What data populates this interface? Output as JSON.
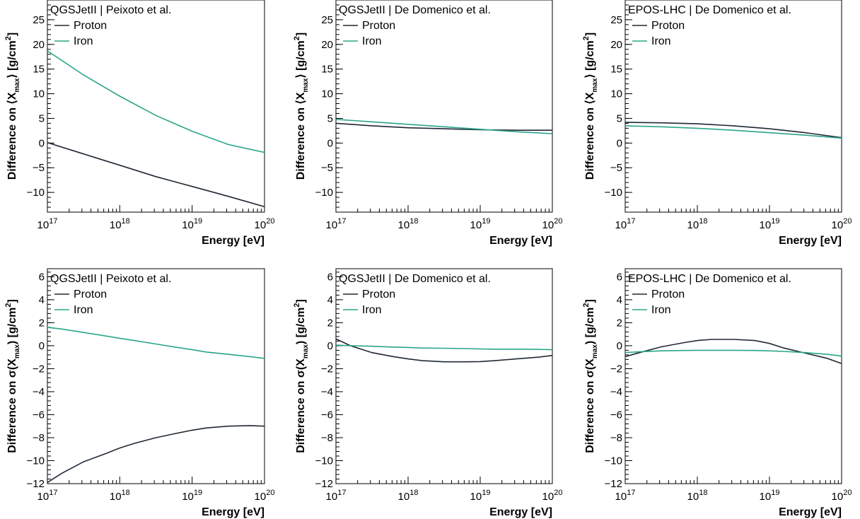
{
  "figure": {
    "colors": {
      "proton": "#202835",
      "iron": "#2aa58a"
    },
    "xlabel": "Energy [eV]",
    "x_ticks": [
      {
        "base": "10",
        "exp": "17",
        "value": 17
      },
      {
        "base": "10",
        "exp": "18",
        "value": 18
      },
      {
        "base": "10",
        "exp": "19",
        "value": 19
      },
      {
        "base": "10",
        "exp": "20",
        "value": 20
      }
    ]
  },
  "chart_data": [
    {
      "type": "line",
      "title": "QGSJetII | Peixoto et al.",
      "ylabel": {
        "pre": "Difference on ",
        "sym": "⟨X",
        "sub": "max",
        "post": "⟩ [g/cm",
        "sup": "2",
        "end": "]"
      },
      "x_scale": "log",
      "xlim": [
        1e+17,
        1e+20
      ],
      "ylim": [
        -14,
        29
      ],
      "y_ticks": [
        -10,
        -5,
        0,
        5,
        10,
        15,
        20,
        25
      ],
      "x": [
        1e+17,
        3.16e+17,
        1e+18,
        3.16e+18,
        1e+19,
        3.16e+19,
        1e+20
      ],
      "series": [
        {
          "name": "Proton",
          "values": [
            0.1,
            -2.2,
            -4.5,
            -6.8,
            -8.8,
            -10.8,
            -12.9
          ]
        },
        {
          "name": "Iron",
          "values": [
            18.7,
            13.8,
            9.5,
            5.6,
            2.4,
            -0.3,
            -1.9
          ]
        }
      ]
    },
    {
      "type": "line",
      "title": "QGSJetII | De Domenico et al.",
      "ylabel": {
        "pre": "Difference on ",
        "sym": "⟨X",
        "sub": "max",
        "post": "⟩ [g/cm",
        "sup": "2",
        "end": "]"
      },
      "x_scale": "log",
      "xlim": [
        1e+17,
        1e+20
      ],
      "ylim": [
        -14,
        29
      ],
      "y_ticks": [
        -10,
        -5,
        0,
        5,
        10,
        15,
        20,
        25
      ],
      "x": [
        1e+17,
        3.16e+17,
        1e+18,
        3.16e+18,
        1e+19,
        3.16e+19,
        1e+20
      ],
      "series": [
        {
          "name": "Proton",
          "values": [
            4.0,
            3.5,
            3.1,
            2.9,
            2.7,
            2.6,
            2.6
          ]
        },
        {
          "name": "Iron",
          "values": [
            4.8,
            4.3,
            3.8,
            3.3,
            2.8,
            2.3,
            1.9
          ]
        }
      ]
    },
    {
      "type": "line",
      "title": "EPOS-LHC | De Domenico et al.",
      "ylabel": {
        "pre": "Difference on ",
        "sym": "⟨X",
        "sub": "max",
        "post": "⟩ [g/cm",
        "sup": "2",
        "end": "]"
      },
      "x_scale": "log",
      "xlim": [
        1e+17,
        1e+20
      ],
      "ylim": [
        -14,
        29
      ],
      "y_ticks": [
        -10,
        -5,
        0,
        5,
        10,
        15,
        20,
        25
      ],
      "x": [
        1e+17,
        3.16e+17,
        1e+18,
        3.16e+18,
        1e+19,
        3.16e+19,
        1e+20
      ],
      "series": [
        {
          "name": "Proton",
          "values": [
            4.2,
            4.1,
            3.9,
            3.5,
            2.9,
            2.1,
            1.1
          ]
        },
        {
          "name": "Iron",
          "values": [
            3.5,
            3.3,
            3.0,
            2.6,
            2.1,
            1.6,
            1.0
          ]
        }
      ]
    },
    {
      "type": "line",
      "title": "QGSJetII | Peixoto et al.",
      "ylabel": {
        "pre": "Difference on ",
        "sym": "σ(X",
        "sub": "max",
        "post": ") [g/cm",
        "sup": "2",
        "end": "]"
      },
      "x_scale": "log",
      "xlim": [
        1e+17,
        1e+20
      ],
      "ylim": [
        -12,
        6.7
      ],
      "y_ticks": [
        -12,
        -10,
        -8,
        -6,
        -4,
        -2,
        0,
        2,
        4,
        6
      ],
      "x": [
        1e+17,
        1.58e+17,
        3.16e+17,
        6.3e+17,
        1e+18,
        1.58e+18,
        3.16e+18,
        6.3e+18,
        1e+19,
        1.58e+19,
        3.16e+19,
        6.3e+19,
        1e+20
      ],
      "series": [
        {
          "name": "Proton",
          "values": [
            -11.9,
            -11.1,
            -10.1,
            -9.4,
            -8.9,
            -8.5,
            -8.0,
            -7.6,
            -7.35,
            -7.15,
            -7.0,
            -6.95,
            -7.0
          ]
        },
        {
          "name": "Iron",
          "values": [
            1.6,
            1.45,
            1.15,
            0.85,
            0.65,
            0.45,
            0.15,
            -0.15,
            -0.35,
            -0.55,
            -0.75,
            -0.95,
            -1.1
          ]
        }
      ]
    },
    {
      "type": "line",
      "title": "QGSJetII | De Domenico et al.",
      "ylabel": {
        "pre": "Difference on ",
        "sym": "σ(X",
        "sub": "max",
        "post": ") [g/cm",
        "sup": "2",
        "end": "]"
      },
      "x_scale": "log",
      "xlim": [
        1e+17,
        1e+20
      ],
      "ylim": [
        -12,
        6.7
      ],
      "y_ticks": [
        -12,
        -10,
        -8,
        -6,
        -4,
        -2,
        0,
        2,
        4,
        6
      ],
      "x": [
        1e+17,
        1.58e+17,
        3.16e+17,
        6.3e+17,
        1e+18,
        1.58e+18,
        3.16e+18,
        6.3e+18,
        1e+19,
        1.58e+19,
        3.16e+19,
        6.3e+19,
        1e+20
      ],
      "series": [
        {
          "name": "Proton",
          "values": [
            0.6,
            0.0,
            -0.6,
            -0.95,
            -1.15,
            -1.3,
            -1.4,
            -1.4,
            -1.38,
            -1.3,
            -1.15,
            -1.0,
            -0.85
          ]
        },
        {
          "name": "Iron",
          "values": [
            0.05,
            0.0,
            -0.05,
            -0.12,
            -0.15,
            -0.2,
            -0.22,
            -0.25,
            -0.28,
            -0.3,
            -0.3,
            -0.32,
            -0.35
          ]
        }
      ]
    },
    {
      "type": "line",
      "title": "EPOS-LHC | De Domenico et al.",
      "ylabel": {
        "pre": "Difference on ",
        "sym": "σ(X",
        "sub": "max",
        "post": ") [g/cm",
        "sup": "2",
        "end": "]"
      },
      "x_scale": "log",
      "xlim": [
        1e+17,
        1e+20
      ],
      "ylim": [
        -12,
        6.7
      ],
      "y_ticks": [
        -12,
        -10,
        -8,
        -6,
        -4,
        -2,
        0,
        2,
        4,
        6
      ],
      "x": [
        1e+17,
        1.58e+17,
        3.16e+17,
        6.3e+17,
        1e+18,
        1.58e+18,
        3.16e+18,
        6.3e+18,
        1e+19,
        1.58e+19,
        3.16e+19,
        6.3e+19,
        1e+20
      ],
      "series": [
        {
          "name": "Proton",
          "values": [
            -0.95,
            -0.6,
            -0.1,
            0.25,
            0.45,
            0.55,
            0.55,
            0.45,
            0.2,
            -0.2,
            -0.65,
            -1.1,
            -1.55
          ]
        },
        {
          "name": "Iron",
          "values": [
            -0.6,
            -0.52,
            -0.45,
            -0.42,
            -0.4,
            -0.4,
            -0.4,
            -0.42,
            -0.45,
            -0.5,
            -0.6,
            -0.75,
            -0.9
          ]
        }
      ]
    }
  ]
}
